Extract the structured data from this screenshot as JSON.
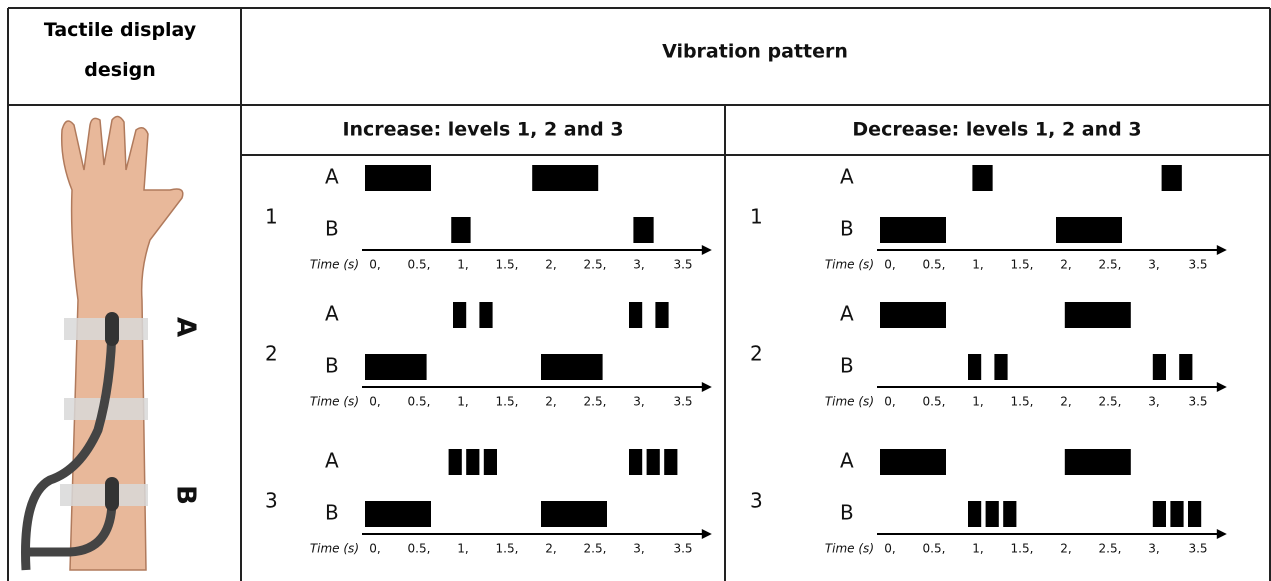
{
  "header": {
    "design": "Tactile display design",
    "pattern": "Vibration pattern"
  },
  "columns": [
    {
      "title": "Increase: levels 1, 2 and 3",
      "levels": [
        {
          "label": "1",
          "tracks": [
            {
              "name": "A",
              "pulses": [
                [
                  0,
                  0.75
                ],
                [
                  1.9,
                  2.65
                ]
              ]
            },
            {
              "name": "B",
              "pulses": [
                [
                  0.98,
                  1.2
                ],
                [
                  3.05,
                  3.28
                ]
              ]
            }
          ]
        },
        {
          "label": "2",
          "tracks": [
            {
              "name": "A",
              "pulses": [
                [
                  1.0,
                  1.15
                ],
                [
                  1.3,
                  1.45
                ],
                [
                  3.0,
                  3.15
                ],
                [
                  3.3,
                  3.45
                ]
              ]
            },
            {
              "name": "B",
              "pulses": [
                [
                  0,
                  0.7
                ],
                [
                  2.0,
                  2.7
                ]
              ]
            }
          ]
        },
        {
          "label": "3",
          "tracks": [
            {
              "name": "A",
              "pulses": [
                [
                  0.95,
                  1.1
                ],
                [
                  1.15,
                  1.3
                ],
                [
                  1.35,
                  1.5
                ],
                [
                  3.0,
                  3.15
                ],
                [
                  3.2,
                  3.35
                ],
                [
                  3.4,
                  3.55
                ]
              ]
            },
            {
              "name": "B",
              "pulses": [
                [
                  0,
                  0.75
                ],
                [
                  2.0,
                  2.75
                ]
              ]
            }
          ]
        }
      ]
    },
    {
      "title": "Decrease: levels 1, 2 and 3",
      "levels": [
        {
          "label": "1",
          "tracks": [
            {
              "name": "A",
              "pulses": [
                [
                  1.05,
                  1.28
                ],
                [
                  3.2,
                  3.43
                ]
              ]
            },
            {
              "name": "B",
              "pulses": [
                [
                  0,
                  0.75
                ],
                [
                  2.0,
                  2.75
                ]
              ]
            }
          ]
        },
        {
          "label": "2",
          "tracks": [
            {
              "name": "A",
              "pulses": [
                [
                  0,
                  0.75
                ],
                [
                  2.1,
                  2.85
                ]
              ]
            },
            {
              "name": "B",
              "pulses": [
                [
                  1.0,
                  1.15
                ],
                [
                  1.3,
                  1.45
                ],
                [
                  3.1,
                  3.25
                ],
                [
                  3.4,
                  3.55
                ]
              ]
            }
          ]
        },
        {
          "label": "3",
          "tracks": [
            {
              "name": "A",
              "pulses": [
                [
                  0,
                  0.75
                ],
                [
                  2.1,
                  2.85
                ]
              ]
            },
            {
              "name": "B",
              "pulses": [
                [
                  1.0,
                  1.15
                ],
                [
                  1.2,
                  1.35
                ],
                [
                  1.4,
                  1.55
                ],
                [
                  3.1,
                  3.25
                ],
                [
                  3.3,
                  3.45
                ],
                [
                  3.5,
                  3.65
                ]
              ]
            }
          ]
        }
      ]
    }
  ],
  "time_axis": {
    "label": "Time (s)",
    "ticks": [
      {
        "value": 0,
        "label": "0,"
      },
      {
        "value": 0.5,
        "label": "0.5,"
      },
      {
        "value": 1,
        "label": "1,"
      },
      {
        "value": 1.5,
        "label": "1.5,"
      },
      {
        "value": 2,
        "label": "2,"
      },
      {
        "value": 2.5,
        "label": "2.5,"
      },
      {
        "value": 3,
        "label": "3,"
      },
      {
        "value": 3.5,
        "label": "3.5"
      }
    ]
  },
  "arm": {
    "labels": [
      "A",
      "B"
    ]
  }
}
